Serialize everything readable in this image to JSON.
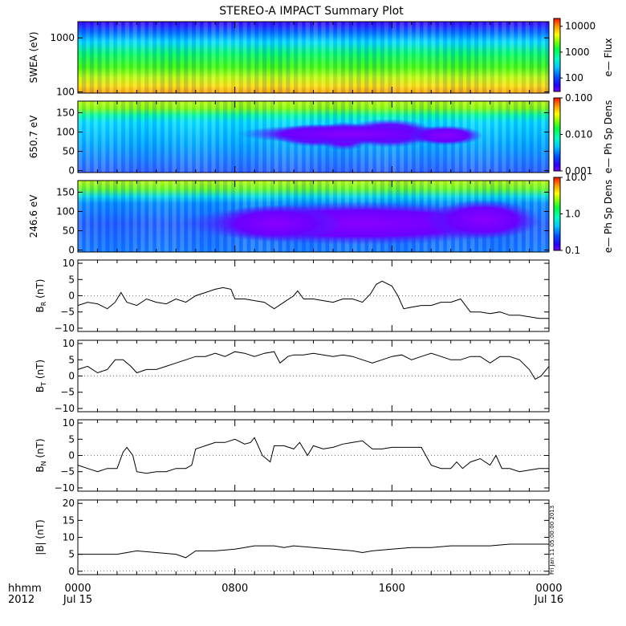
{
  "title": "STEREO-A IMPACT Summary Plot",
  "footer": {
    "time_label": "hhmm",
    "year_label": "2012",
    "tick_times": [
      "0000",
      "0800",
      "1600",
      "0000"
    ],
    "tick_dates": [
      "Jul 15",
      "",
      "",
      "Jul 16"
    ]
  },
  "side_stamp": "Fri Jan 11 05:00:00 2013",
  "chart_data": [
    {
      "type": "heatmap",
      "name": "swea",
      "ylabel": "SWEA (eV)",
      "ylog": true,
      "ylim": [
        95,
        2000
      ],
      "yticks": [
        {
          "v": 100,
          "label": "100"
        },
        {
          "v": 1000,
          "label": "1000"
        }
      ],
      "xlim": [
        0,
        24
      ],
      "colorbar": {
        "label": "e— Flux",
        "log": true,
        "range": [
          30,
          20000
        ],
        "ticks": [
          {
            "v": 100,
            "label": "100"
          },
          {
            "v": 1000,
            "label": "1000"
          },
          {
            "v": 10000,
            "label": "10000"
          }
        ]
      }
    },
    {
      "type": "heatmap",
      "name": "pad650",
      "ylabel": "650.7 eV",
      "ylim": [
        -5,
        180
      ],
      "yticks": [
        {
          "v": 0,
          "label": "0"
        },
        {
          "v": 50,
          "label": "50"
        },
        {
          "v": 100,
          "label": "100"
        },
        {
          "v": 150,
          "label": "150"
        }
      ],
      "xlim": [
        0,
        24
      ],
      "colorbar": {
        "label": "e— Ph Sp Dens",
        "log": true,
        "range": [
          0.001,
          0.1
        ],
        "ticks": [
          {
            "v": 0.001,
            "label": "0.001"
          },
          {
            "v": 0.01,
            "label": "0.010"
          },
          {
            "v": 0.1,
            "label": "0.100"
          }
        ]
      }
    },
    {
      "type": "heatmap",
      "name": "pad246",
      "ylabel": "246.6 eV",
      "ylim": [
        -5,
        180
      ],
      "yticks": [
        {
          "v": 0,
          "label": "0"
        },
        {
          "v": 50,
          "label": "50"
        },
        {
          "v": 100,
          "label": "100"
        },
        {
          "v": 150,
          "label": "150"
        }
      ],
      "xlim": [
        0,
        24
      ],
      "colorbar": {
        "label": "e— Ph Sp Dens",
        "log": true,
        "range": [
          0.1,
          10
        ],
        "ticks": [
          {
            "v": 0.1,
            "label": "0.1"
          },
          {
            "v": 1,
            "label": "1.0"
          },
          {
            "v": 10,
            "label": "10.0"
          }
        ]
      }
    },
    {
      "type": "line",
      "name": "br",
      "ylabel_main": "B",
      "ylabel_sub": "R",
      "ylabel_unit": "(nT)",
      "ylim": [
        -11,
        11
      ],
      "yticks": [
        {
          "v": -10,
          "label": "−10"
        },
        {
          "v": -5,
          "label": "−5"
        },
        {
          "v": 0,
          "label": "0"
        },
        {
          "v": 5,
          "label": "5"
        },
        {
          "v": 10,
          "label": "10"
        }
      ],
      "xlim": [
        0,
        24
      ],
      "x": [
        0,
        0.5,
        1,
        1.5,
        1.9,
        2.2,
        2.5,
        3,
        3.5,
        4,
        4.5,
        5,
        5.5,
        6,
        6.5,
        7,
        7.4,
        7.8,
        8,
        8.5,
        9,
        9.5,
        10,
        10.5,
        11,
        11.2,
        11.5,
        12,
        12.5,
        13,
        13.5,
        14,
        14.5,
        14.9,
        15.2,
        15.5,
        16,
        16.3,
        16.6,
        17,
        17.5,
        18,
        18.5,
        19,
        19.5,
        20,
        20.5,
        21,
        21.5,
        22,
        22.5,
        23,
        23.5,
        24
      ],
      "values": [
        -3,
        -2,
        -2.5,
        -4,
        -2,
        1,
        -2,
        -3,
        -1,
        -2,
        -2.5,
        -1,
        -2,
        0,
        1,
        2,
        2.5,
        2,
        -1,
        -1,
        -1.5,
        -2,
        -4,
        -2,
        0,
        1.5,
        -1,
        -1,
        -1.5,
        -2,
        -1,
        -1,
        -2,
        0.5,
        3.5,
        4.5,
        3,
        0,
        -4,
        -3.5,
        -3,
        -3,
        -2,
        -2,
        -1,
        -5,
        -5,
        -5.5,
        -5,
        -6,
        -6,
        -6.5,
        -7,
        -7
      ]
    },
    {
      "type": "line",
      "name": "bt",
      "ylabel_main": "B",
      "ylabel_sub": "T",
      "ylabel_unit": "(nT)",
      "ylim": [
        -11,
        11
      ],
      "yticks": [
        {
          "v": -10,
          "label": "−10"
        },
        {
          "v": -5,
          "label": "−5"
        },
        {
          "v": 0,
          "label": "0"
        },
        {
          "v": 5,
          "label": "5"
        },
        {
          "v": 10,
          "label": "10"
        }
      ],
      "xlim": [
        0,
        24
      ],
      "x": [
        0,
        0.5,
        1,
        1.5,
        1.9,
        2.3,
        2.7,
        3,
        3.5,
        4,
        4.5,
        5,
        5.5,
        6,
        6.5,
        7,
        7.5,
        8,
        8.5,
        9,
        9.5,
        10,
        10.3,
        10.7,
        11,
        11.5,
        12,
        12.5,
        13,
        13.5,
        14,
        14.5,
        15,
        15.5,
        16,
        16.5,
        17,
        17.5,
        18,
        18.5,
        19,
        19.5,
        20,
        20.5,
        21,
        21.5,
        22,
        22.5,
        23,
        23.3,
        23.6,
        24
      ],
      "values": [
        2,
        3,
        1,
        2,
        5,
        5,
        3,
        1,
        2,
        2,
        3,
        4,
        5,
        6,
        6,
        7,
        6,
        7.5,
        7,
        6,
        7,
        7.5,
        4,
        6,
        6.5,
        6.5,
        7,
        6.5,
        6,
        6.5,
        6,
        5,
        4,
        5,
        6,
        6.5,
        5,
        6,
        7,
        6,
        5,
        5,
        6,
        6,
        4,
        6,
        6,
        5,
        2,
        -1,
        0,
        3
      ]
    },
    {
      "type": "line",
      "name": "bn",
      "ylabel_main": "B",
      "ylabel_sub": "N",
      "ylabel_unit": "(nT)",
      "ylim": [
        -11,
        11
      ],
      "yticks": [
        {
          "v": -10,
          "label": "−10"
        },
        {
          "v": -5,
          "label": "−5"
        },
        {
          "v": 0,
          "label": "0"
        },
        {
          "v": 5,
          "label": "5"
        },
        {
          "v": 10,
          "label": "10"
        }
      ],
      "xlim": [
        0,
        24
      ],
      "x": [
        0,
        0.5,
        1,
        1.5,
        2,
        2.3,
        2.5,
        2.8,
        3,
        3.5,
        4,
        4.5,
        5,
        5.5,
        5.8,
        6,
        6.5,
        7,
        7.5,
        8,
        8.5,
        8.8,
        9,
        9.4,
        9.8,
        10,
        10.5,
        11,
        11.3,
        11.7,
        12,
        12.5,
        13,
        13.5,
        14,
        14.5,
        15,
        15.5,
        16,
        16.5,
        17,
        17.5,
        18,
        18.5,
        19,
        19.3,
        19.6,
        20,
        20.5,
        21,
        21.3,
        21.6,
        22,
        22.5,
        23,
        23.5,
        24
      ],
      "values": [
        -3,
        -4,
        -5,
        -4,
        -4,
        1,
        2.5,
        0,
        -5,
        -5.5,
        -5,
        -5,
        -4,
        -4,
        -3,
        2,
        3,
        4,
        4,
        5,
        3.5,
        4,
        5.5,
        0,
        -2,
        3,
        3,
        2,
        4,
        0,
        3,
        2,
        2.5,
        3.5,
        4,
        4.5,
        2,
        2,
        2.5,
        2.5,
        2.5,
        2.5,
        -3,
        -4,
        -4,
        -2,
        -4,
        -2,
        -1,
        -3,
        0,
        -4,
        -4,
        -5,
        -4.5,
        -4,
        -4
      ]
    },
    {
      "type": "line",
      "name": "bmag",
      "ylabel_main": "|B| (nT)",
      "ylim": [
        -1,
        21
      ],
      "yticks": [
        {
          "v": 0,
          "label": "0"
        },
        {
          "v": 5,
          "label": "5"
        },
        {
          "v": 10,
          "label": "10"
        },
        {
          "v": 15,
          "label": "15"
        },
        {
          "v": 20,
          "label": "20"
        }
      ],
      "xlim": [
        0,
        24
      ],
      "x": [
        0,
        1,
        2,
        2.5,
        3,
        4,
        5,
        5.5,
        6,
        7,
        8,
        8.5,
        9,
        10,
        10.5,
        11,
        12,
        13,
        14,
        14.5,
        15,
        16,
        17,
        18,
        19,
        20,
        21,
        22,
        23,
        24
      ],
      "values": [
        5,
        5,
        5,
        5.5,
        6,
        5.5,
        5,
        4,
        6,
        6,
        6.5,
        7,
        7.5,
        7.5,
        7,
        7.5,
        7,
        6.5,
        6,
        5.5,
        6,
        6.5,
        7,
        7,
        7.5,
        7.5,
        7.5,
        8,
        8,
        8
      ]
    }
  ]
}
